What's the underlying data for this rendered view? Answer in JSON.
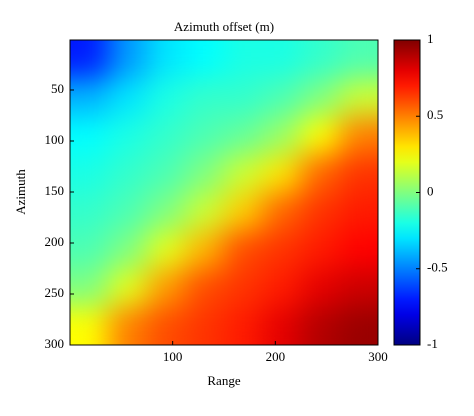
{
  "chart_data": {
    "type": "heatmap",
    "title": "Azimuth offset (m)",
    "x_label": "Range",
    "y_label": "Azimuth",
    "xlim": [
      0,
      300
    ],
    "xticks": [
      100,
      200,
      300
    ],
    "ylim": [
      1,
      300
    ],
    "yticks": [
      50,
      100,
      150,
      200,
      250,
      300
    ],
    "y_reversed": true,
    "colormap": "jet",
    "clim": [
      -1,
      1
    ],
    "cticks": [
      -1,
      -0.5,
      0,
      0.5,
      1
    ],
    "z": [
      [
        -0.7,
        -0.45,
        -0.3,
        -0.25,
        -0.2,
        -0.2,
        -0.15,
        -0.1
      ],
      [
        -0.4,
        -0.3,
        -0.2,
        -0.15,
        -0.15,
        -0.1,
        0.0,
        0.15
      ],
      [
        -0.25,
        -0.2,
        -0.15,
        -0.1,
        -0.05,
        0.05,
        0.25,
        0.5
      ],
      [
        -0.2,
        -0.15,
        -0.1,
        0.0,
        0.15,
        0.3,
        0.55,
        0.65
      ],
      [
        -0.15,
        -0.1,
        0.0,
        0.15,
        0.35,
        0.55,
        0.65,
        0.7
      ],
      [
        -0.1,
        0.0,
        0.2,
        0.4,
        0.6,
        0.65,
        0.7,
        0.75
      ],
      [
        0.0,
        0.2,
        0.45,
        0.6,
        0.65,
        0.7,
        0.8,
        0.85
      ],
      [
        0.25,
        0.5,
        0.6,
        0.65,
        0.7,
        0.8,
        0.9,
        0.95
      ]
    ]
  }
}
